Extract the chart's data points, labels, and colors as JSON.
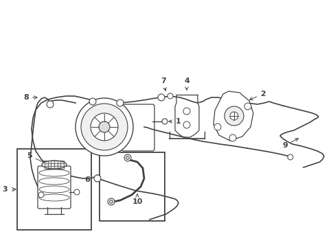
{
  "bg_color": "#ffffff",
  "line_color": "#404040",
  "figsize": [
    4.89,
    3.6
  ],
  "dpi": 100,
  "xlim": [
    0,
    489
  ],
  "ylim": [
    0,
    360
  ]
}
